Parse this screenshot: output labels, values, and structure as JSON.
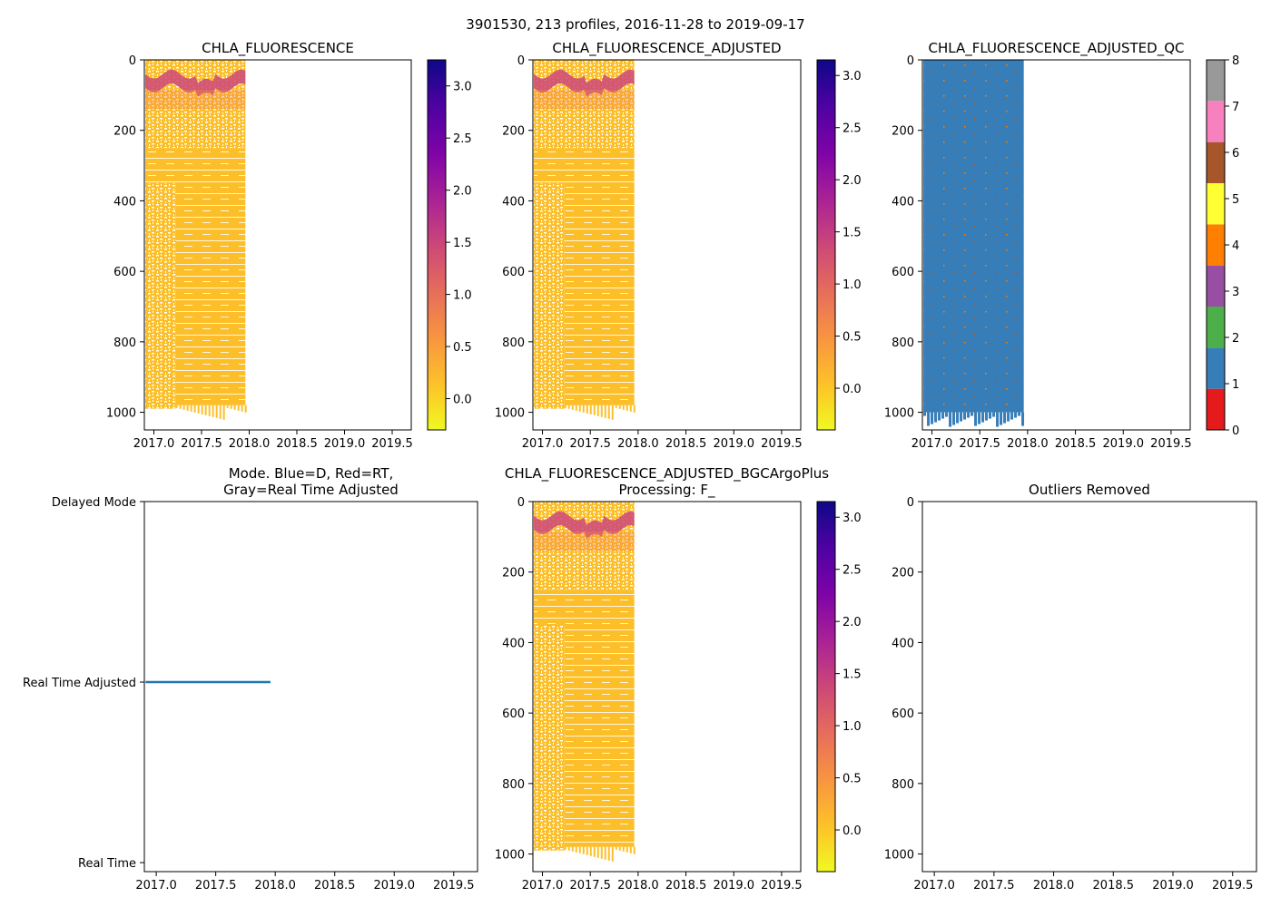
{
  "figure": {
    "suptitle": "3901530, 213 profiles, 2016-11-28 to 2019-09-17"
  },
  "colors": {
    "plasma_low": "#f0f921",
    "plasma_mid": "#cc4778",
    "plasma_high": "#0d0887",
    "data_fill": "#fcbf2a",
    "qc_blue": "#377eb8",
    "mode_line": "#1f77b4",
    "qc_classes": [
      "#e41a1c",
      "#377eb8",
      "#4daf4a",
      "#984ea3",
      "#ff7f00",
      "#ffff33",
      "#a65628",
      "#f781bf",
      "#999999"
    ]
  },
  "chart_data": [
    {
      "id": "chla",
      "type": "heatmap",
      "title": "CHLA_FLUORESCENCE",
      "xlim": [
        2016.9,
        2019.7
      ],
      "xticks": [
        2017.0,
        2017.5,
        2018.0,
        2018.5,
        2019.0,
        2019.5
      ],
      "xtick_labels": [
        "2017.0",
        "2017.5",
        "2018.0",
        "2018.5",
        "2019.0",
        "2019.5"
      ],
      "ylim": [
        1050,
        0
      ],
      "yticks": [
        0,
        200,
        400,
        600,
        800,
        1000
      ],
      "ytick_labels": [
        "0",
        "200",
        "400",
        "600",
        "800",
        "1000"
      ],
      "data_range": {
        "time": [
          2016.91,
          2017.96
        ],
        "depth": [
          0,
          1030
        ]
      },
      "chlorophyll_max_layer": {
        "depth": [
          30,
          90
        ],
        "value": 1.5
      },
      "colorbar": {
        "cmap": "plasma_r",
        "vmin": -0.3,
        "vmax": 3.25,
        "ticks": [
          0.0,
          0.5,
          1.0,
          1.5,
          2.0,
          2.5,
          3.0
        ],
        "tick_labels": [
          "0.0",
          "0.5",
          "1.0",
          "1.5",
          "2.0",
          "2.5",
          "3.0"
        ]
      }
    },
    {
      "id": "chla_adj",
      "type": "heatmap",
      "title": "CHLA_FLUORESCENCE_ADJUSTED",
      "xlim": [
        2016.9,
        2019.7
      ],
      "xticks": [
        2017.0,
        2017.5,
        2018.0,
        2018.5,
        2019.0,
        2019.5
      ],
      "xtick_labels": [
        "2017.0",
        "2017.5",
        "2018.0",
        "2018.5",
        "2019.0",
        "2019.5"
      ],
      "ylim": [
        1050,
        0
      ],
      "yticks": [
        0,
        200,
        400,
        600,
        800,
        1000
      ],
      "ytick_labels": [
        "0",
        "200",
        "400",
        "600",
        "800",
        "1000"
      ],
      "data_range": {
        "time": [
          2016.91,
          2017.96
        ],
        "depth": [
          0,
          1030
        ]
      },
      "chlorophyll_max_layer": {
        "depth": [
          30,
          90
        ],
        "value": 1.5
      },
      "colorbar": {
        "cmap": "plasma_r",
        "vmin": -0.4,
        "vmax": 3.15,
        "ticks": [
          0.0,
          0.5,
          1.0,
          1.5,
          2.0,
          2.5,
          3.0
        ],
        "tick_labels": [
          "0.0",
          "0.5",
          "1.0",
          "1.5",
          "2.0",
          "2.5",
          "3.0"
        ]
      }
    },
    {
      "id": "chla_qc",
      "type": "heatmap",
      "title": "CHLA_FLUORESCENCE_ADJUSTED_QC",
      "xlim": [
        2016.9,
        2019.7
      ],
      "xticks": [
        2017.0,
        2017.5,
        2018.0,
        2018.5,
        2019.0,
        2019.5
      ],
      "xtick_labels": [
        "2017.0",
        "2017.5",
        "2018.0",
        "2018.5",
        "2019.0",
        "2019.5"
      ],
      "ylim": [
        1050,
        0
      ],
      "yticks": [
        0,
        200,
        400,
        600,
        800,
        1000
      ],
      "ytick_labels": [
        "0",
        "200",
        "400",
        "600",
        "800",
        "1000"
      ],
      "data_range": {
        "time": [
          2016.91,
          2017.96
        ],
        "depth": [
          0,
          1030
        ]
      },
      "qc_value": 1,
      "colorbar": {
        "cmap": "qc_categorical",
        "vmin": 0,
        "vmax": 8,
        "ticks": [
          0,
          1,
          2,
          3,
          4,
          5,
          6,
          7,
          8
        ],
        "tick_labels": [
          "0",
          "1",
          "2",
          "3",
          "4",
          "5",
          "6",
          "7",
          "8"
        ]
      }
    },
    {
      "id": "mode",
      "type": "line",
      "title": "Mode. Blue=D, Red=RT,\nGray=Real Time Adjusted",
      "xlim": [
        2016.9,
        2019.7
      ],
      "xticks": [
        2017.0,
        2017.5,
        2018.0,
        2018.5,
        2019.0,
        2019.5
      ],
      "xtick_labels": [
        "2017.0",
        "2017.5",
        "2018.0",
        "2018.5",
        "2019.0",
        "2019.5"
      ],
      "ylim": [
        -0.05,
        2.0
      ],
      "yticks": [
        0,
        1,
        2
      ],
      "ytick_labels": [
        "Real Time",
        "Real Time Adjusted",
        "Delayed Mode"
      ],
      "series": [
        {
          "name": "mode",
          "x": [
            2016.91,
            2017.96
          ],
          "y": [
            1,
            1
          ]
        }
      ]
    },
    {
      "id": "chla_bgc",
      "type": "heatmap",
      "title": "CHLA_FLUORESCENCE_ADJUSTED_BGCArgoPlus\nProcessing: F_",
      "xlim": [
        2016.9,
        2019.7
      ],
      "xticks": [
        2017.0,
        2017.5,
        2018.0,
        2018.5,
        2019.0,
        2019.5
      ],
      "xtick_labels": [
        "2017.0",
        "2017.5",
        "2018.0",
        "2018.5",
        "2019.0",
        "2019.5"
      ],
      "ylim": [
        1050,
        0
      ],
      "yticks": [
        0,
        200,
        400,
        600,
        800,
        1000
      ],
      "ytick_labels": [
        "0",
        "200",
        "400",
        "600",
        "800",
        "1000"
      ],
      "data_range": {
        "time": [
          2016.91,
          2017.96
        ],
        "depth": [
          0,
          1030
        ]
      },
      "chlorophyll_max_layer": {
        "depth": [
          30,
          90
        ],
        "value": 1.5
      },
      "colorbar": {
        "cmap": "plasma_r",
        "vmin": -0.4,
        "vmax": 3.15,
        "ticks": [
          0.0,
          0.5,
          1.0,
          1.5,
          2.0,
          2.5,
          3.0
        ],
        "tick_labels": [
          "0.0",
          "0.5",
          "1.0",
          "1.5",
          "2.0",
          "2.5",
          "3.0"
        ]
      }
    },
    {
      "id": "outliers",
      "type": "scatter",
      "title": "Outliers Removed",
      "xlim": [
        2016.9,
        2019.7
      ],
      "xticks": [
        2017.0,
        2017.5,
        2018.0,
        2018.5,
        2019.0,
        2019.5
      ],
      "xtick_labels": [
        "2017.0",
        "2017.5",
        "2018.0",
        "2018.5",
        "2019.0",
        "2019.5"
      ],
      "ylim": [
        1050,
        0
      ],
      "yticks": [
        0,
        200,
        400,
        600,
        800,
        1000
      ],
      "ytick_labels": [
        "0",
        "200",
        "400",
        "600",
        "800",
        "1000"
      ],
      "points": []
    }
  ]
}
